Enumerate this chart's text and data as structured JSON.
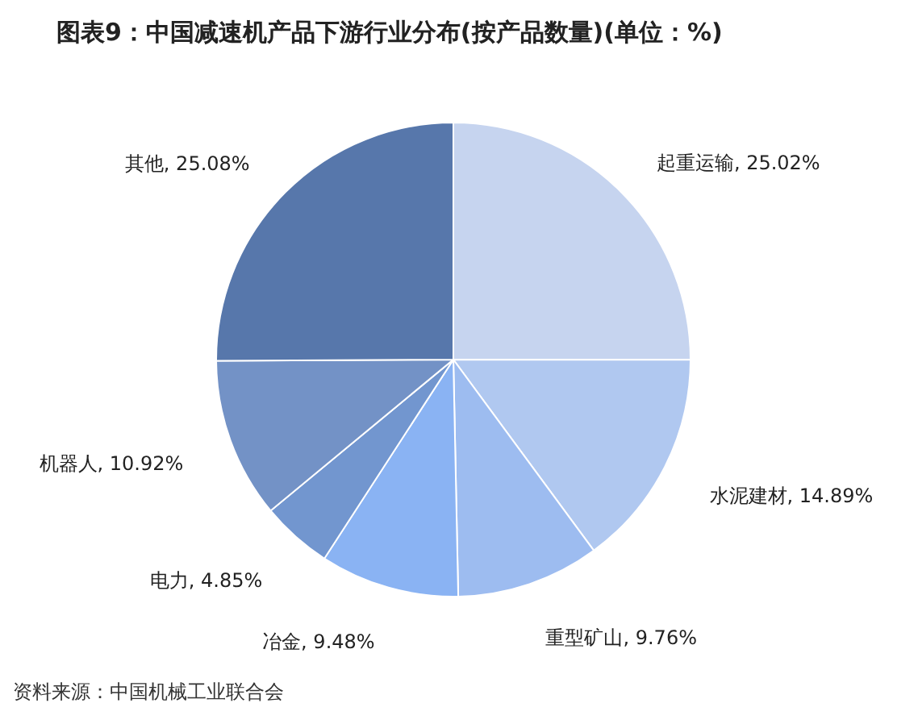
{
  "chart_data": {
    "type": "pie",
    "title": "图表9：中国减速机产品下游行业分布(按产品数量)(单位：%)",
    "categories": [
      "起重运输",
      "水泥建材",
      "重型矿山",
      "冶金",
      "电力",
      "机器人",
      "其他"
    ],
    "values": [
      25.02,
      14.89,
      9.76,
      9.48,
      4.85,
      10.92,
      25.08
    ],
    "value_labels": [
      "25.02%",
      "14.89%",
      "9.76%",
      "9.48%",
      "4.85%",
      "10.92%",
      "25.08%"
    ],
    "colors": [
      "#c6d4ef",
      "#b0c8f0",
      "#9dbcf0",
      "#8ab3f3",
      "#7296cf",
      "#7392c6",
      "#5777ab"
    ],
    "legend": false,
    "annotations": [
      "资料来源：中国机械工业联合会"
    ]
  }
}
